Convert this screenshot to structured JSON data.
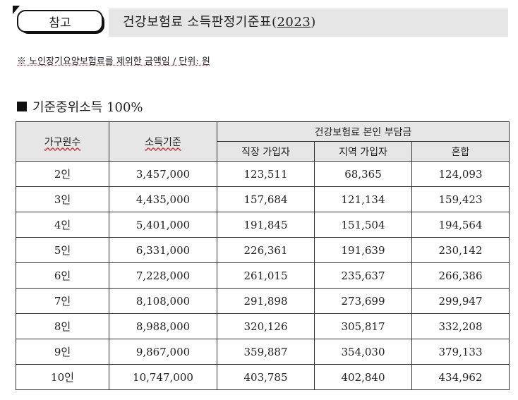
{
  "header": {
    "tag_label": "참고",
    "title_prefix": "건강보험료 소득판정기준표(",
    "title_year": "2023",
    "title_suffix": ")"
  },
  "note": "※ 노인장기요양보험료를 제외한 금액임 / 단위: 원",
  "section_title": "기준중위소득 100%",
  "table": {
    "headers": {
      "household": "가구원수",
      "income": "소득기준",
      "burden_group": "건강보험료 본인 부담금",
      "workplace": "직장 가입자",
      "regional": "지역 가입자",
      "mixed": "혼합"
    },
    "rows": [
      {
        "household": "2인",
        "income": "3,457,000",
        "workplace": "123,511",
        "regional": "68,365",
        "mixed": "124,093"
      },
      {
        "household": "3인",
        "income": "4,435,000",
        "workplace": "157,684",
        "regional": "121,134",
        "mixed": "159,423"
      },
      {
        "household": "4인",
        "income": "5,401,000",
        "workplace": "191,845",
        "regional": "151,504",
        "mixed": "194,564"
      },
      {
        "household": "5인",
        "income": "6,331,000",
        "workplace": "226,361",
        "regional": "191,639",
        "mixed": "230,142"
      },
      {
        "household": "6인",
        "income": "7,228,000",
        "workplace": "261,015",
        "regional": "235,637",
        "mixed": "266,386"
      },
      {
        "household": "7인",
        "income": "8,108,000",
        "workplace": "291,898",
        "regional": "273,699",
        "mixed": "299,947"
      },
      {
        "household": "8인",
        "income": "8,988,000",
        "workplace": "320,126",
        "regional": "305,817",
        "mixed": "332,208"
      },
      {
        "household": "9인",
        "income": "9,867,000",
        "workplace": "359,887",
        "regional": "354,030",
        "mixed": "379,133"
      },
      {
        "household": "10인",
        "income": "10,747,000",
        "workplace": "403,785",
        "regional": "402,840",
        "mixed": "434,962"
      }
    ]
  }
}
